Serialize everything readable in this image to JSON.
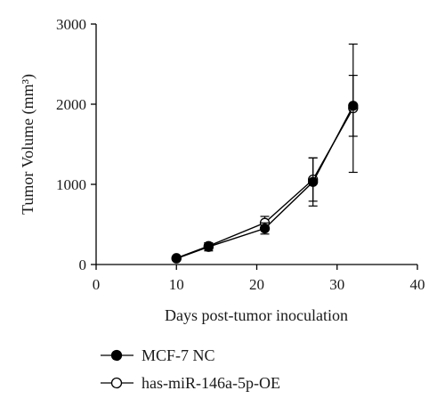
{
  "chart_data": {
    "type": "line",
    "title": "",
    "xlabel": "Days post-tumor inoculation",
    "ylabel": "Tumor Volume (mm³)",
    "xlim": [
      0,
      40
    ],
    "ylim": [
      0,
      3000
    ],
    "xticks": [
      0,
      10,
      20,
      30,
      40
    ],
    "yticks": [
      0,
      1000,
      2000,
      3000
    ],
    "grid": false,
    "legend_position": "bottom-left",
    "series": [
      {
        "name": "MCF-7 NC",
        "marker": "filled-circle",
        "color": "#000000",
        "x": [
          10,
          14,
          21,
          27,
          32
        ],
        "y": [
          75,
          220,
          450,
          1030,
          1980
        ],
        "error": [
          20,
          50,
          70,
          300,
          380
        ]
      },
      {
        "name": "has-miR-146a-5p-OE",
        "marker": "open-circle",
        "color": "#000000",
        "x": [
          10,
          14,
          21,
          27,
          32
        ],
        "y": [
          80,
          230,
          520,
          1060,
          1950
        ],
        "error": [
          20,
          40,
          80,
          270,
          800
        ]
      }
    ]
  }
}
